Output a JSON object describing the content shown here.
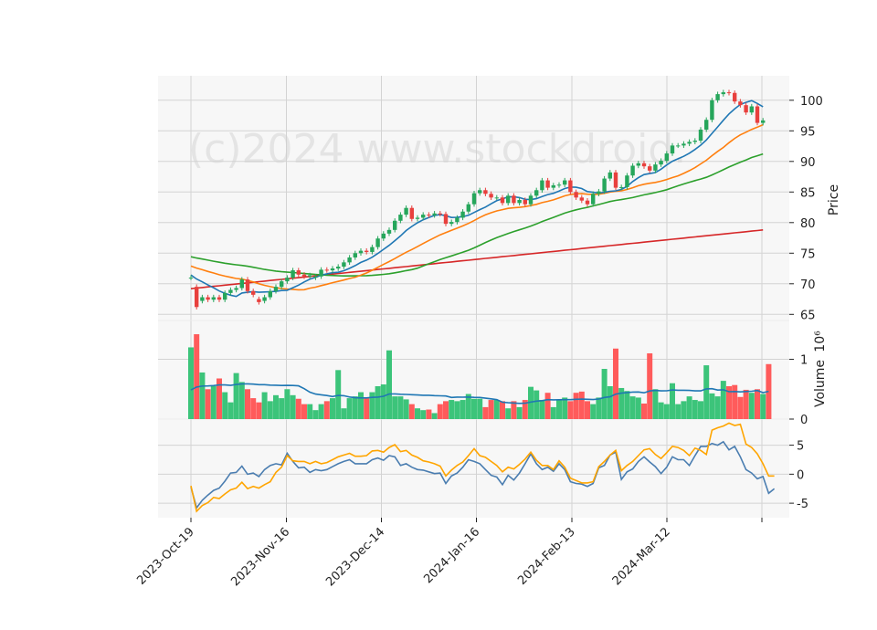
{
  "watermark": "(c)2024 www.stockdroid.",
  "colors": {
    "up": "#26a65b",
    "down": "#e8403d",
    "vol_up": "#3cc47a",
    "vol_down": "#ff5b5b",
    "sma_short": "#1f77b4",
    "sma_mid": "#ff7f0e",
    "sma_long": "#2ca02c",
    "sma_200": "#d62728",
    "vol_ma": "#1f77b4",
    "osc_a": "#4a7db0",
    "osc_b": "#ffa500",
    "panel_bg": "#f7f7f7",
    "grid": "#d3d3d3"
  },
  "chart_data": {
    "type": "candlestick",
    "dates": [
      "2023-Oct-19",
      "2023-Nov-16",
      "2023-Dec-14",
      "2024-Jan-16",
      "2024-Feb-13",
      "2024-Mar-12"
    ],
    "price_axis": {
      "label": "Price",
      "ticks": [
        65,
        70,
        75,
        80,
        85,
        90,
        95,
        100
      ],
      "range": [
        64,
        104
      ]
    },
    "volume_axis": {
      "label": "Volume",
      "exponent": "10⁶",
      "ticks": [
        0,
        1
      ],
      "range": [
        0,
        1.65
      ]
    },
    "oscillator_axis": {
      "ticks": [
        -5,
        0,
        5
      ],
      "range": [
        -7.5,
        9.5
      ]
    },
    "close": [
      71,
      66.2,
      67.8,
      67.4,
      67.8,
      67.4,
      68.5,
      69,
      69.3,
      70.7,
      68.8,
      68.2,
      67,
      67.8,
      68.8,
      69.5,
      70.4,
      71,
      72.2,
      71.5,
      71.2,
      71.4,
      71.2,
      72.3,
      72.2,
      72.5,
      72.8,
      73.5,
      74.3,
      75,
      75.4,
      75.2,
      76,
      77.4,
      78.2,
      78.8,
      80.3,
      81.3,
      82.4,
      80.6,
      80.8,
      81.3,
      81.2,
      81.5,
      81.4,
      79.8,
      80.1,
      80.8,
      81.8,
      83,
      84.8,
      85.3,
      84.7,
      84.1,
      84.1,
      83.2,
      84.4,
      83.2,
      83.7,
      83,
      84.4,
      85.3,
      86.9,
      85.7,
      86.1,
      86.2,
      86.9,
      85,
      84.1,
      83.6,
      83,
      84.7,
      85.1,
      87.2,
      88.2,
      85.7,
      85.8,
      87.7,
      89.3,
      89.7,
      89.2,
      88.5,
      89.5,
      90.1,
      91.3,
      92.6,
      92.6,
      92.9,
      93.2,
      93.4,
      95.2,
      96.8,
      100,
      101,
      101.3,
      101.2,
      99.8,
      99.2,
      98,
      99,
      96.3,
      96.7
    ],
    "open": [
      71,
      69.5,
      67.2,
      67.8,
      67.4,
      67.8,
      67.4,
      68.5,
      69,
      69.3,
      70.7,
      68.8,
      67.5,
      67.2,
      67.8,
      68.8,
      69.5,
      70.4,
      71,
      72.2,
      71.5,
      71.2,
      71,
      71.2,
      72.3,
      72.2,
      72.5,
      72.8,
      73.5,
      74.3,
      75,
      75.4,
      75.2,
      76,
      77.4,
      78.2,
      78.8,
      80.3,
      81.3,
      82.4,
      80.6,
      80.8,
      81.3,
      81.2,
      81.5,
      81.4,
      79.8,
      80.1,
      80.8,
      81.8,
      83,
      84.8,
      85.3,
      84.7,
      84.1,
      84.1,
      83.2,
      84.4,
      83.2,
      83.7,
      83,
      84.4,
      85.3,
      86.9,
      85.7,
      86.1,
      86.2,
      86.9,
      85,
      84.1,
      83.6,
      83,
      84.7,
      85.1,
      87.2,
      88.2,
      85.7,
      85.8,
      87.7,
      89.3,
      89.7,
      89.2,
      88.5,
      89.5,
      90.1,
      91.3,
      92.6,
      92.6,
      92.9,
      93.2,
      93.4,
      95.2,
      96.8,
      100,
      101,
      101.3,
      101.2,
      99.8,
      99.2,
      98,
      99,
      96.3
    ],
    "volume": [
      1.2,
      1.42,
      0.78,
      0.5,
      0.55,
      0.68,
      0.45,
      0.28,
      0.77,
      0.62,
      0.5,
      0.35,
      0.28,
      0.45,
      0.3,
      0.4,
      0.35,
      0.5,
      0.4,
      0.34,
      0.25,
      0.25,
      0.15,
      0.25,
      0.3,
      0.35,
      0.82,
      0.18,
      0.35,
      0.38,
      0.45,
      0.35,
      0.45,
      0.55,
      0.58,
      1.15,
      0.38,
      0.38,
      0.33,
      0.25,
      0.18,
      0.15,
      0.16,
      0.1,
      0.25,
      0.3,
      0.32,
      0.3,
      0.32,
      0.42,
      0.34,
      0.34,
      0.2,
      0.32,
      0.32,
      0.3,
      0.18,
      0.3,
      0.2,
      0.32,
      0.54,
      0.48,
      0.32,
      0.44,
      0.2,
      0.32,
      0.36,
      0.3,
      0.44,
      0.46,
      0.3,
      0.25,
      0.36,
      0.84,
      0.55,
      1.18,
      0.52,
      0.47,
      0.38,
      0.36,
      0.26,
      1.1,
      0.5,
      0.28,
      0.25,
      0.6,
      0.25,
      0.3,
      0.38,
      0.32,
      0.3,
      0.9,
      0.43,
      0.38,
      0.64,
      0.55,
      0.57,
      0.37,
      0.49,
      0.44,
      0.5,
      0.42,
      0.92
    ],
    "osc_a": [
      -2.2,
      -5.8,
      -4.5,
      -3.6,
      -2.8,
      -2.4,
      -1.2,
      0.2,
      0.3,
      1.4,
      0,
      0.2,
      -0.4,
      0.8,
      1.5,
      1.8,
      1.6,
      3.6,
      2.2,
      1.1,
      1.2,
      0.3,
      0.8,
      0.6,
      0.8,
      1.3,
      1.8,
      2.2,
      2.5,
      1.8,
      1.8,
      1.8,
      2.5,
      2.8,
      2.4,
      3.2,
      3,
      1.5,
      1.8,
      1.2,
      0.8,
      0.7,
      0.4,
      0.1,
      0.2,
      -1.6,
      -0.3,
      0.2,
      1.2,
      2.5,
      2.2,
      1.8,
      0.8,
      -0.2,
      -0.5,
      -1.8,
      -0.2,
      -1,
      0.2,
      1.8,
      3.5,
      1.8,
      0.8,
      1.2,
      0.5,
      1.8,
      0.8,
      -1.3,
      -1.6,
      -1.7,
      -2.1,
      -1.6,
      1.1,
      1.5,
      3.3,
      3.8,
      -0.9,
      0.4,
      0.9,
      2.2,
      3,
      2.1,
      1.3,
      0.1,
      1.2,
      3,
      2.5,
      2.5,
      1.5,
      3.2,
      4.8,
      4.8,
      5.3,
      5,
      5.6,
      4.2,
      4.8,
      3,
      0.8,
      0.2,
      -0.8,
      -0.4,
      -3.3,
      -2.5
    ],
    "osc_b": [
      -2,
      -6.4,
      -5.4,
      -4.9,
      -4,
      -4.2,
      -3.4,
      -2.7,
      -2.4,
      -1.4,
      -2.5,
      -2.1,
      -2.4,
      -1.8,
      -1.3,
      0.3,
      1.2,
      3.2,
      2.3,
      2.2,
      2.2,
      1.8,
      2.2,
      1.8,
      2,
      2.5,
      3,
      3.3,
      3.6,
      3.1,
      3.1,
      3.2,
      4,
      4.1,
      3.8,
      4.6,
      5.1,
      3.9,
      4.1,
      3.3,
      2.9,
      2.3,
      2.1,
      1.8,
      1.4,
      -0.3,
      0.7,
      1.5,
      2.1,
      3.2,
      4.4,
      3.2,
      2.9,
      2.2,
      1.5,
      0.4,
      1.2,
      0.9,
      1.7,
      2.6,
      3.8,
      2.4,
      1.5,
      1.5,
      0.8,
      2.3,
      1.2,
      -0.7,
      -1.1,
      -1.5,
      -1.5,
      -1.3,
      1.3,
      2.2,
      3.3,
      4.1,
      0.6,
      1.5,
      2.2,
      3.2,
      4.2,
      4.4,
      3.4,
      2.7,
      3.7,
      4.8,
      4.6,
      4.1,
      3.2,
      4.5,
      4.1,
      3.4,
      7.6,
      8,
      8.3,
      8.8,
      8.4,
      8.6,
      5.2,
      4.6,
      3.5,
      1.8,
      -0.3,
      -0.3
    ]
  }
}
